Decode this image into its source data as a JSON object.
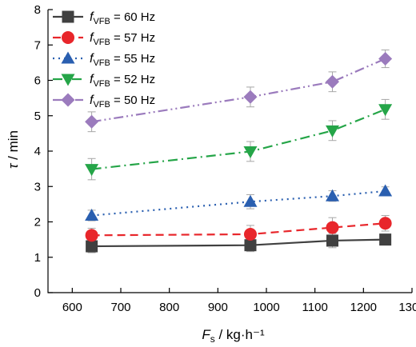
{
  "chart_data": {
    "type": "line",
    "xlabel": {
      "main": "F",
      "sub": "s",
      "unit": " / kg·h⁻¹"
    },
    "ylabel": {
      "main": "τ",
      "unit": " / min"
    },
    "xlim": [
      550,
      1300
    ],
    "ylim": [
      0,
      8
    ],
    "xticks": [
      600,
      700,
      800,
      900,
      1000,
      1100,
      1200,
      1300
    ],
    "yticks": [
      0,
      1,
      2,
      3,
      4,
      5,
      6,
      7,
      8
    ],
    "legend_placement": "top-left",
    "grid": false,
    "x": [
      640,
      967,
      1136,
      1245
    ],
    "series": [
      {
        "name_main": "f",
        "name_sub": "VFB",
        "name_rest": " = 60 Hz",
        "values": [
          1.31,
          1.34,
          1.47,
          1.5
        ],
        "errors": [
          0.18,
          0.18,
          0.2,
          0.15
        ],
        "color": "#404040",
        "marker": "square",
        "dash": "solid"
      },
      {
        "name_main": "f",
        "name_sub": "VFB",
        "name_rest": " = 57 Hz",
        "values": [
          1.62,
          1.65,
          1.84,
          1.96
        ],
        "errors": [
          0.2,
          0.25,
          0.28,
          0.22
        ],
        "color": "#e8262b",
        "marker": "circle",
        "dash": "dash"
      },
      {
        "name_main": "f",
        "name_sub": "VFB",
        "name_rest": " = 55 Hz",
        "values": [
          2.18,
          2.57,
          2.73,
          2.87
        ],
        "errors": [
          0.15,
          0.2,
          0.15,
          0.12
        ],
        "color": "#2a5fb0",
        "marker": "triangle-up",
        "dash": "dot"
      },
      {
        "name_main": "f",
        "name_sub": "VFB",
        "name_rest": " = 52 Hz",
        "values": [
          3.49,
          3.99,
          4.58,
          5.18
        ],
        "errors": [
          0.3,
          0.28,
          0.28,
          0.28
        ],
        "color": "#25a548",
        "marker": "triangle-down",
        "dash": "dashdot"
      },
      {
        "name_main": "f",
        "name_sub": "VFB",
        "name_rest": " = 50 Hz",
        "values": [
          4.83,
          5.53,
          5.96,
          6.61
        ],
        "errors": [
          0.28,
          0.28,
          0.28,
          0.25
        ],
        "color": "#9b7bbd",
        "marker": "diamond",
        "dash": "dashdotdot"
      }
    ]
  }
}
